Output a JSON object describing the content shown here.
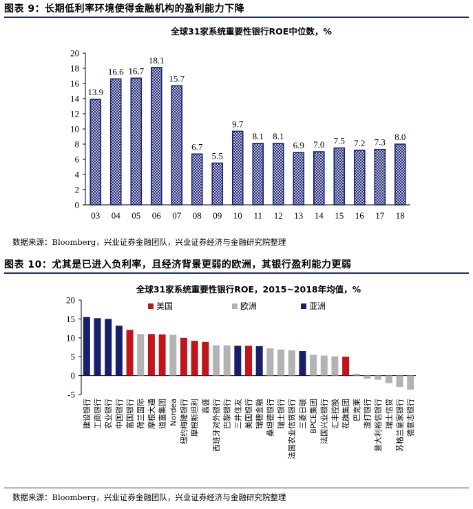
{
  "figure9": {
    "title": "图表 9：长期低利率环境使得金融机构的盈利能力下降",
    "source": "数据来源：Bloomberg，兴业证券金融团队，兴业证券经济与金融研究院整理"
  },
  "figure10": {
    "title": "图表 10：尤其是已进入负利率，且经济背景更弱的欧洲，其银行盈利能力更弱",
    "source": "数据来源：Bloomberg，兴业证券金融团队，兴业证券经济与金融研究院整理"
  },
  "chart_data": [
    {
      "type": "bar",
      "title": "全球31家系统重要性银行ROE中位数，%",
      "categories": [
        "03",
        "04",
        "05",
        "06",
        "07",
        "08",
        "09",
        "10",
        "11",
        "12",
        "13",
        "14",
        "15",
        "16",
        "17",
        "18"
      ],
      "values": [
        13.9,
        16.6,
        16.7,
        18.1,
        15.7,
        6.7,
        5.5,
        9.7,
        8.1,
        8.1,
        6.9,
        7.0,
        7.5,
        7.2,
        7.3,
        8.0
      ],
      "value_labels": [
        "13.9",
        "16.6",
        "16.7",
        "18.1",
        "15.7",
        "6.7",
        "5.5",
        "9.7",
        "8.1",
        "8.1",
        "6.9",
        "7.0",
        "7.5",
        "7.2",
        "7.3",
        "8.0"
      ],
      "ylim": [
        0,
        20
      ],
      "yticks": [
        0,
        2,
        4,
        6,
        8,
        10,
        12,
        14,
        16,
        18,
        20
      ],
      "bar_color": "#1c2473",
      "bar_pattern": "hatched",
      "grid": false,
      "xlabel": "",
      "ylabel": ""
    },
    {
      "type": "bar",
      "title": "全球31家系统重要性银行ROE，2015~2018年均值，%",
      "categories": [
        "建设银行",
        "工商银行",
        "农业银行",
        "中国银行",
        "富国银行",
        "荷兰国际",
        "摩根大通",
        "道富集团",
        "Nordea",
        "纽约梅隆银行",
        "摩根斯坦利",
        "高盛",
        "西班牙对外银行",
        "巴黎银行",
        "三井住友",
        "美国银行",
        "瑞穗金融",
        "桑坦德银行",
        "瑞士银行",
        "法国农业信贷银行",
        "三菱日联",
        "BPCE集团",
        "法国兴业银行",
        "汇丰控股",
        "花旗集团",
        "巴克莱",
        "渣打银行",
        "意大利裕信银行",
        "瑞士信贷",
        "苏格兰皇家银行",
        "德意志银行"
      ],
      "values": [
        15.5,
        15.2,
        15.0,
        13.2,
        12.1,
        11.0,
        11.0,
        10.9,
        10.8,
        10.0,
        9.2,
        8.9,
        8.0,
        8.0,
        7.9,
        7.9,
        7.8,
        7.2,
        6.9,
        6.7,
        6.5,
        5.5,
        5.3,
        5.1,
        5.0,
        0.5,
        -0.8,
        -1.1,
        -2.0,
        -3.0,
        -3.7
      ],
      "groups": [
        "亚洲",
        "亚洲",
        "亚洲",
        "亚洲",
        "美国",
        "欧洲",
        "美国",
        "美国",
        "欧洲",
        "美国",
        "美国",
        "美国",
        "欧洲",
        "欧洲",
        "亚洲",
        "美国",
        "亚洲",
        "欧洲",
        "欧洲",
        "欧洲",
        "亚洲",
        "欧洲",
        "欧洲",
        "欧洲",
        "美国",
        "欧洲",
        "欧洲",
        "欧洲",
        "欧洲",
        "欧洲",
        "欧洲"
      ],
      "legend": [
        "美国",
        "欧洲",
        "亚洲"
      ],
      "legend_placement": "top-left",
      "colors": {
        "美国": "#c0151b",
        "欧洲": "#b3b3b3",
        "亚洲": "#1a1f6b"
      },
      "ylim": [
        -5,
        20
      ],
      "yticks": [
        -5,
        0,
        5,
        10,
        15,
        20
      ],
      "grid": false,
      "xlabel": "",
      "ylabel": ""
    }
  ]
}
